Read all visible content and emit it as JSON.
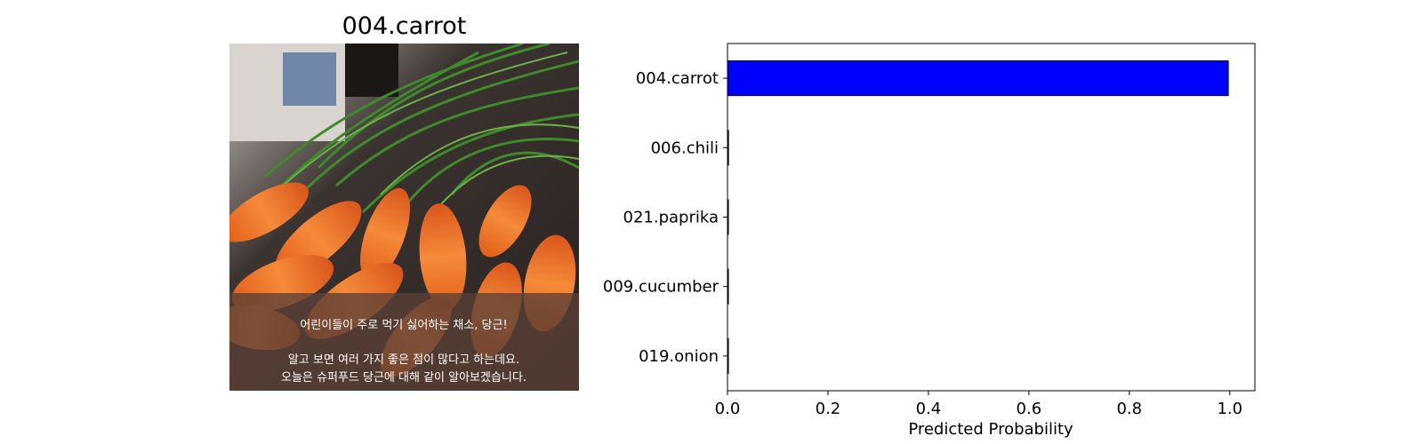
{
  "image_panel": {
    "title": "004.carrot",
    "caption_line1": "어린이들이 주로 먹기 싫어하는 채소, 당근!",
    "caption_line2": "알고 보면 여러 가지 좋은 점이 많다고 하는데요.",
    "caption_line3": "오늘은 슈퍼푸드 당근에 대해 같이 알아보겠습니다."
  },
  "chart_data": {
    "type": "bar",
    "orientation": "horizontal",
    "categories": [
      "004.carrot",
      "006.chili",
      "021.paprika",
      "009.cucumber",
      "019.onion"
    ],
    "values": [
      0.997,
      0.002,
      0.0005,
      0.0003,
      0.0002
    ],
    "xlabel": "Predicted Probability",
    "ylabel": "",
    "xlim": [
      0,
      1.05
    ],
    "xticks": [
      "0.0",
      "0.2",
      "0.4",
      "0.6",
      "0.8",
      "1.0"
    ],
    "bar_color": "#0000ff",
    "grid": false
  }
}
